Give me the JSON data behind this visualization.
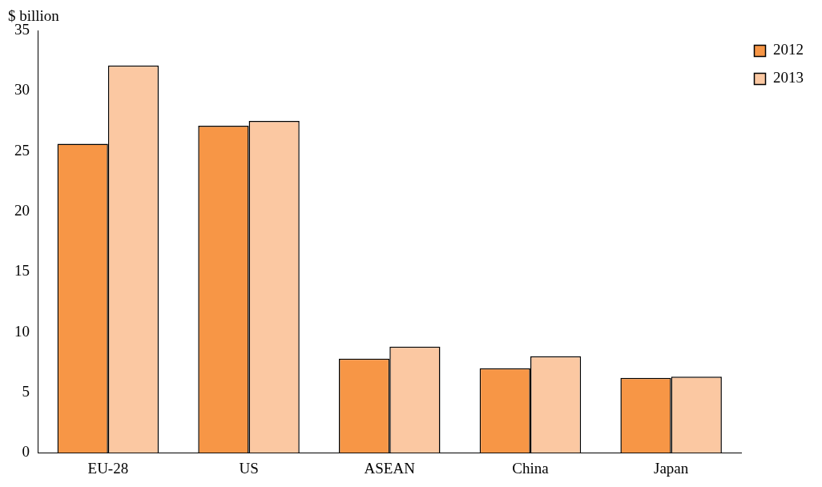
{
  "chart_data": {
    "type": "bar",
    "ylabel": "$ billion",
    "categories": [
      "EU-28",
      "US",
      "ASEAN",
      "China",
      "Japan"
    ],
    "series": [
      {
        "name": "2012",
        "color": "#f79646",
        "values": [
          25.6,
          27.1,
          7.8,
          7.0,
          6.2
        ]
      },
      {
        "name": "2013",
        "color": "#fbc8a2",
        "values": [
          32.1,
          27.5,
          8.8,
          8.0,
          6.3
        ]
      }
    ],
    "ylim": [
      0,
      35
    ],
    "yticks": [
      0,
      5,
      10,
      15,
      20,
      25,
      30,
      35
    ],
    "grid": false,
    "legend": "top right"
  }
}
